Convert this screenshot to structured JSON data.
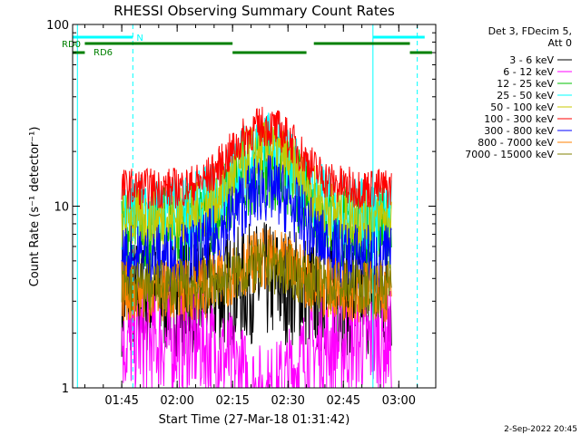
{
  "chart_data": {
    "type": "line",
    "title": "RHESSI Observing Summary Count Rates",
    "xlabel": "Start Time (27-Mar-18 01:31:42)",
    "ylabel": "Count Rate (s⁻¹ detector⁻¹)",
    "y_scale": "log",
    "ylim": [
      1,
      100
    ],
    "x_range": [
      "01:31:42",
      "03:10:00"
    ],
    "x_ticks": [
      "01:45",
      "02:00",
      "02:15",
      "02:30",
      "02:45",
      "03:00"
    ],
    "y_ticks": [
      "1",
      "10",
      "100"
    ],
    "legend_header": [
      "Det 3, FDecim 5,",
      "Att 0"
    ],
    "legend_position": "right",
    "series": [
      {
        "name": "3 - 6 keV",
        "color": "#000000",
        "base": 3.2,
        "peak": 1.2,
        "jitter": 0.35
      },
      {
        "name": "6 - 12 keV",
        "color": "#ff00ff",
        "base": 1.8,
        "peak": 0.5,
        "jitter": 0.3
      },
      {
        "name": "12 - 25 keV",
        "color": "#00c000",
        "base": 7.5,
        "peak": 2.2,
        "jitter": 0.25
      },
      {
        "name": "25 - 50 keV",
        "color": "#00ffff",
        "base": 9.0,
        "peak": 2.3,
        "jitter": 0.22
      },
      {
        "name": "50 - 100 keV",
        "color": "#c8c800",
        "base": 8.5,
        "peak": 2.4,
        "jitter": 0.18
      },
      {
        "name": "100 - 300 keV",
        "color": "#ff0000",
        "base": 12.5,
        "peak": 2.2,
        "jitter": 0.12
      },
      {
        "name": "300 - 800 keV",
        "color": "#0000ff",
        "base": 5.2,
        "peak": 2.4,
        "jitter": 0.2
      },
      {
        "name": "800 - 7000 keV",
        "color": "#ff8000",
        "base": 3.4,
        "peak": 1.5,
        "jitter": 0.18
      },
      {
        "name": "7000 - 15000 keV",
        "color": "#808000",
        "base": 3.6,
        "peak": 1.3,
        "jitter": 0.16
      }
    ],
    "data_start": "01:45",
    "data_end": "02:58",
    "flare_peak_time": "02:24",
    "markers": {
      "cyan_vertical_solid": [
        "01:33",
        "02:53"
      ],
      "cyan_vertical_dashed": [
        "01:48",
        "03:05"
      ],
      "N_label": "N",
      "RD0_label": "RD0",
      "RD6_label": "RD6"
    },
    "bars": {
      "cyan": [
        [
          "01:31:42",
          "01:48"
        ],
        [
          "02:53",
          "03:07"
        ]
      ],
      "green_upper": [
        [
          "01:35",
          "02:15"
        ],
        [
          "02:37",
          "03:03"
        ]
      ],
      "green_lower": [
        [
          "01:31:42",
          "01:35"
        ],
        [
          "02:15",
          "02:35"
        ],
        [
          "03:03",
          "03:09"
        ]
      ]
    }
  },
  "footer": {
    "timestamp": "2-Sep-2022 20:45"
  }
}
